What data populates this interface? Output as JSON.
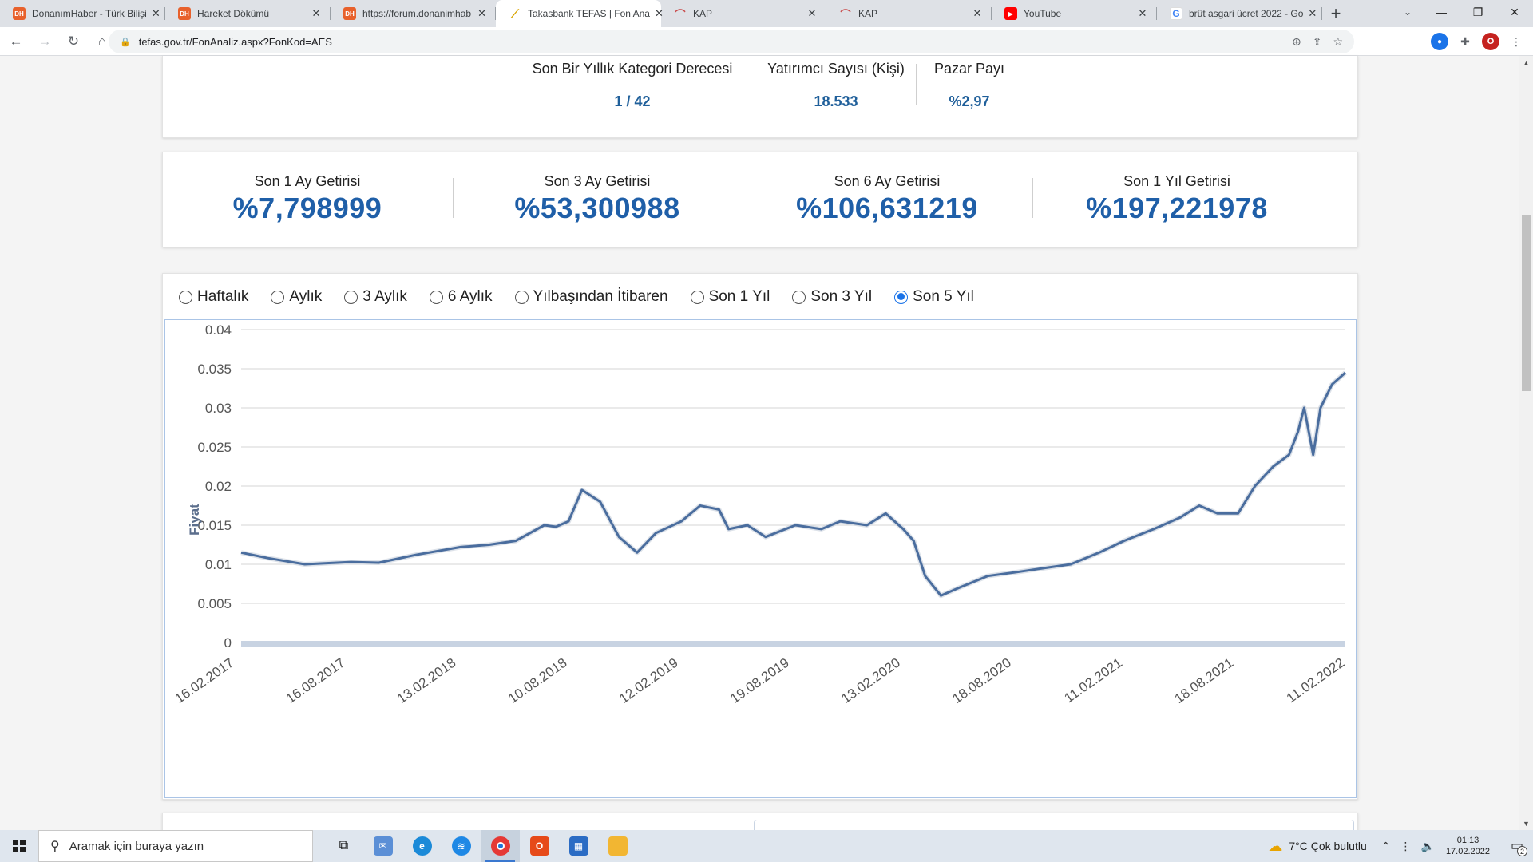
{
  "browser": {
    "tabs": [
      {
        "title": "DonanımHaber - Türk Bilişi",
        "favicon": "DH",
        "active": false
      },
      {
        "title": "Hareket Dökümü",
        "favicon": "DH",
        "active": false
      },
      {
        "title": "https://forum.donanimhab",
        "favicon": "DH",
        "active": false
      },
      {
        "title": "Takasbank TEFAS | Fon Ana",
        "favicon": "tefas",
        "active": true
      },
      {
        "title": "KAP",
        "favicon": "kap",
        "active": false
      },
      {
        "title": "KAP",
        "favicon": "kap",
        "active": false
      },
      {
        "title": "YouTube",
        "favicon": "yt",
        "active": false
      },
      {
        "title": "brüt asgari ücret 2022 - Go",
        "favicon": "G",
        "active": false
      }
    ],
    "url": "tefas.gov.tr/FonAnaliz.aspx?FonKod=AES",
    "profile_initial": "O"
  },
  "summary": {
    "items": [
      {
        "label": "Son Bir Yıllık Kategori Derecesi",
        "value": "1 / 42"
      },
      {
        "label": "Yatırımcı Sayısı (Kişi)",
        "value": "18.533"
      },
      {
        "label": "Pazar Payı",
        "value": "%2,97"
      }
    ]
  },
  "returns": [
    {
      "label": "Son 1 Ay Getirisi",
      "value": "%7,798999"
    },
    {
      "label": "Son 3 Ay Getirisi",
      "value": "%53,300988"
    },
    {
      "label": "Son 6 Ay Getirisi",
      "value": "%106,631219"
    },
    {
      "label": "Son 1 Yıl Getirisi",
      "value": "%197,221978"
    }
  ],
  "periods": {
    "options": [
      "Haftalık",
      "Aylık",
      "3 Aylık",
      "6 Aylık",
      "Yılbaşından İtibaren",
      "Son 1 Yıl",
      "Son 3 Yıl",
      "Son 5 Yıl"
    ],
    "selected": "Son 5 Yıl"
  },
  "chart_data": {
    "type": "line",
    "title": "",
    "xlabel": "",
    "ylabel": "Fiyat",
    "ylim": [
      0,
      0.04
    ],
    "yticks": [
      "0",
      "0.005",
      "0.01",
      "0.015",
      "0.02",
      "0.025",
      "0.03",
      "0.035",
      "0.04"
    ],
    "xtick_labels": [
      "16.02.2017",
      "16.08.2017",
      "13.02.2018",
      "10.08.2018",
      "12.02.2019",
      "19.08.2019",
      "13.02.2020",
      "18.08.2020",
      "11.02.2021",
      "18.08.2021",
      "11.02.2022"
    ],
    "grid": true,
    "series": [
      {
        "color": "#4a6d9e",
        "x": [
          "2017-02-16",
          "2017-04-01",
          "2017-06-01",
          "2017-08-16",
          "2017-10-01",
          "2017-12-01",
          "2018-02-13",
          "2018-04-01",
          "2018-05-15",
          "2018-07-01",
          "2018-07-20",
          "2018-08-10",
          "2018-09-01",
          "2018-10-01",
          "2018-11-01",
          "2018-12-01",
          "2019-01-01",
          "2019-02-12",
          "2019-03-15",
          "2019-04-15",
          "2019-05-01",
          "2019-06-01",
          "2019-07-01",
          "2019-08-19",
          "2019-10-01",
          "2019-11-01",
          "2019-12-15",
          "2020-01-15",
          "2020-02-13",
          "2020-03-01",
          "2020-03-20",
          "2020-04-15",
          "2020-05-15",
          "2020-07-01",
          "2020-08-18",
          "2020-10-01",
          "2020-11-15",
          "2021-01-01",
          "2021-02-11",
          "2021-04-01",
          "2021-05-15",
          "2021-06-15",
          "2021-07-15",
          "2021-08-18",
          "2021-09-15",
          "2021-10-15",
          "2021-11-10",
          "2021-11-25",
          "2021-12-05",
          "2021-12-20",
          "2022-01-01",
          "2022-01-20",
          "2022-02-11"
        ],
        "y": [
          0.0115,
          0.0108,
          0.01,
          0.0103,
          0.0102,
          0.0112,
          0.0122,
          0.0125,
          0.013,
          0.015,
          0.0148,
          0.0155,
          0.0195,
          0.018,
          0.0135,
          0.0115,
          0.014,
          0.0155,
          0.0175,
          0.017,
          0.0145,
          0.015,
          0.0135,
          0.015,
          0.0145,
          0.0155,
          0.015,
          0.0165,
          0.0145,
          0.013,
          0.0085,
          0.006,
          0.007,
          0.0085,
          0.009,
          0.0095,
          0.01,
          0.0115,
          0.013,
          0.0145,
          0.016,
          0.0175,
          0.0165,
          0.0165,
          0.02,
          0.0225,
          0.024,
          0.027,
          0.03,
          0.024,
          0.03,
          0.033,
          0.0345
        ]
      }
    ]
  },
  "taskbar": {
    "search_placeholder": "Aramak için buraya yazın",
    "weather": "7°C  Çok bulutlu",
    "time": "01:13",
    "date": "17.02.2022",
    "notifications": "2"
  }
}
